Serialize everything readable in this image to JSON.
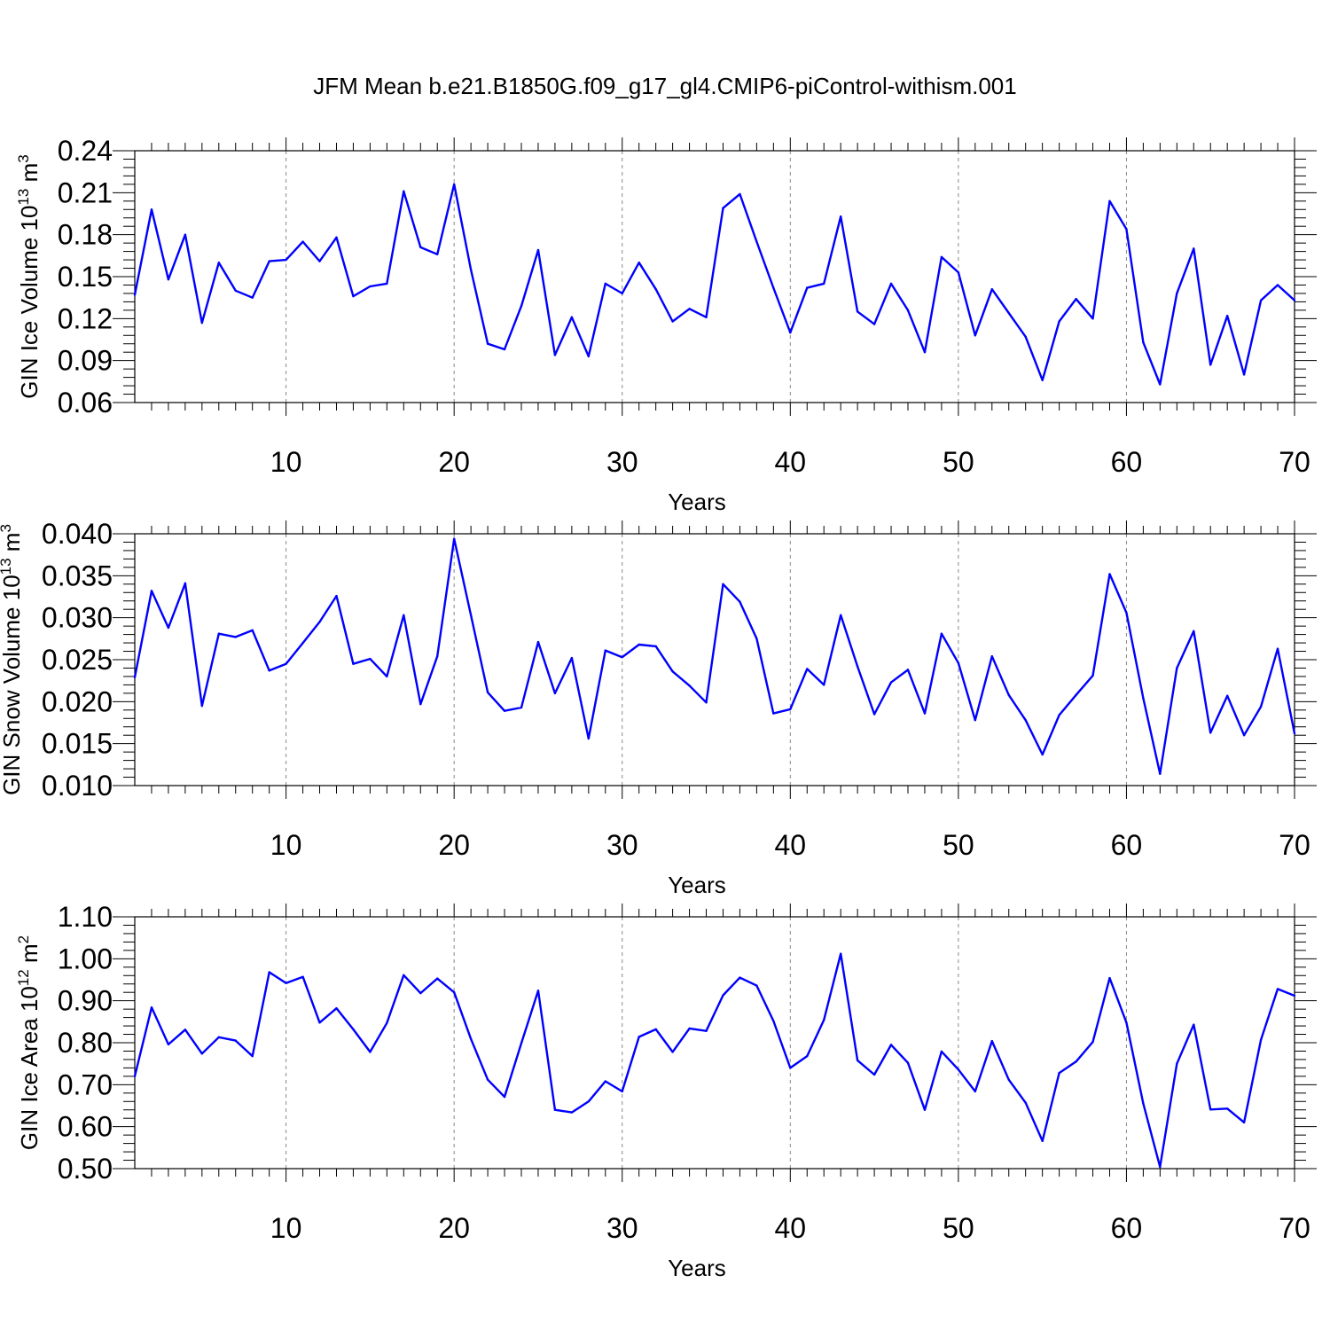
{
  "title": "JFM Mean b.e21.B1850G.f09_g17_gl4.CMIP6-piControl-withism.001",
  "colors": {
    "line": "#0000ff",
    "frame": "#000000",
    "grid": "#888888"
  },
  "chart_data": [
    {
      "type": "line",
      "xlabel": "Years",
      "ylabel": {
        "text": "GIN Ice Volume 10",
        "exp": "13",
        "unit": " m",
        "unit_exp": "3"
      },
      "xlim": [
        1,
        70
      ],
      "ylim": [
        0.06,
        0.24
      ],
      "x_ticks": [
        10,
        20,
        30,
        40,
        50,
        60,
        70
      ],
      "y_ticks": [
        "0.06",
        "0.09",
        "0.12",
        "0.15",
        "0.18",
        "0.21",
        "0.24"
      ],
      "grid": "vertical dashed at major x ticks",
      "x_start": 1,
      "values": [
        0.137,
        0.198,
        0.148,
        0.18,
        0.117,
        0.16,
        0.14,
        0.135,
        0.161,
        0.162,
        0.175,
        0.161,
        0.178,
        0.136,
        0.143,
        0.145,
        0.211,
        0.171,
        0.166,
        0.216,
        0.155,
        0.102,
        0.098,
        0.129,
        0.169,
        0.094,
        0.121,
        0.093,
        0.145,
        0.138,
        0.16,
        0.141,
        0.118,
        0.127,
        0.121,
        0.199,
        0.209,
        0.175,
        0.142,
        0.11,
        0.142,
        0.145,
        0.193,
        0.125,
        0.116,
        0.145,
        0.126,
        0.096,
        0.164,
        0.153,
        0.108,
        0.141,
        0.124,
        0.107,
        0.076,
        0.118,
        0.134,
        0.12,
        0.204,
        0.184,
        0.103,
        0.073,
        0.138,
        0.17,
        0.087,
        0.122,
        0.08,
        0.133,
        0.144,
        0.133
      ]
    },
    {
      "type": "line",
      "xlabel": "Years",
      "ylabel": {
        "text": "GIN Snow Volume 10",
        "exp": "13",
        "unit": " m",
        "unit_exp": "3"
      },
      "xlim": [
        1,
        70
      ],
      "ylim": [
        0.01,
        0.04
      ],
      "x_ticks": [
        10,
        20,
        30,
        40,
        50,
        60,
        70
      ],
      "y_ticks": [
        "0.010",
        "0.015",
        "0.020",
        "0.025",
        "0.030",
        "0.035",
        "0.040"
      ],
      "grid": "vertical dashed at major x ticks",
      "x_start": 1,
      "values": [
        0.0229,
        0.0332,
        0.0288,
        0.0341,
        0.0195,
        0.0281,
        0.0277,
        0.0285,
        0.0237,
        0.0245,
        0.027,
        0.0295,
        0.0326,
        0.0245,
        0.0251,
        0.023,
        0.0303,
        0.0197,
        0.0254,
        0.0394,
        0.0303,
        0.0211,
        0.0189,
        0.0193,
        0.0271,
        0.021,
        0.0252,
        0.0156,
        0.0261,
        0.0253,
        0.0268,
        0.0266,
        0.0236,
        0.0219,
        0.0199,
        0.034,
        0.0319,
        0.0275,
        0.0186,
        0.0191,
        0.0239,
        0.022,
        0.0303,
        0.0242,
        0.0185,
        0.0223,
        0.0238,
        0.0186,
        0.0281,
        0.0246,
        0.0178,
        0.0254,
        0.0208,
        0.0178,
        0.0137,
        0.0184,
        0.0208,
        0.0231,
        0.0352,
        0.0306,
        0.0204,
        0.0114,
        0.024,
        0.0284,
        0.0163,
        0.0207,
        0.016,
        0.0194,
        0.0263,
        0.0162
      ]
    },
    {
      "type": "line",
      "xlabel": "Years",
      "ylabel": {
        "text": "GIN Ice Area 10",
        "exp": "12",
        "unit": " m",
        "unit_exp": "2"
      },
      "xlim": [
        1,
        70
      ],
      "ylim": [
        0.5,
        1.1
      ],
      "x_ticks": [
        10,
        20,
        30,
        40,
        50,
        60,
        70
      ],
      "y_ticks": [
        "0.50",
        "0.60",
        "0.70",
        "0.80",
        "0.90",
        "1.00",
        "1.10"
      ],
      "grid": "vertical dashed at major x ticks",
      "x_start": 1,
      "values": [
        0.72,
        0.884,
        0.796,
        0.831,
        0.774,
        0.813,
        0.805,
        0.768,
        0.968,
        0.942,
        0.957,
        0.848,
        0.882,
        0.832,
        0.778,
        0.847,
        0.961,
        0.918,
        0.953,
        0.92,
        0.809,
        0.712,
        0.671,
        0.799,
        0.924,
        0.64,
        0.634,
        0.66,
        0.708,
        0.684,
        0.814,
        0.832,
        0.778,
        0.834,
        0.828,
        0.913,
        0.955,
        0.936,
        0.852,
        0.74,
        0.768,
        0.854,
        1.012,
        0.758,
        0.724,
        0.795,
        0.752,
        0.64,
        0.779,
        0.736,
        0.684,
        0.804,
        0.712,
        0.657,
        0.566,
        0.728,
        0.755,
        0.802,
        0.954,
        0.848,
        0.655,
        0.504,
        0.75,
        0.843,
        0.641,
        0.643,
        0.61,
        0.807,
        0.928,
        0.912
      ]
    }
  ]
}
